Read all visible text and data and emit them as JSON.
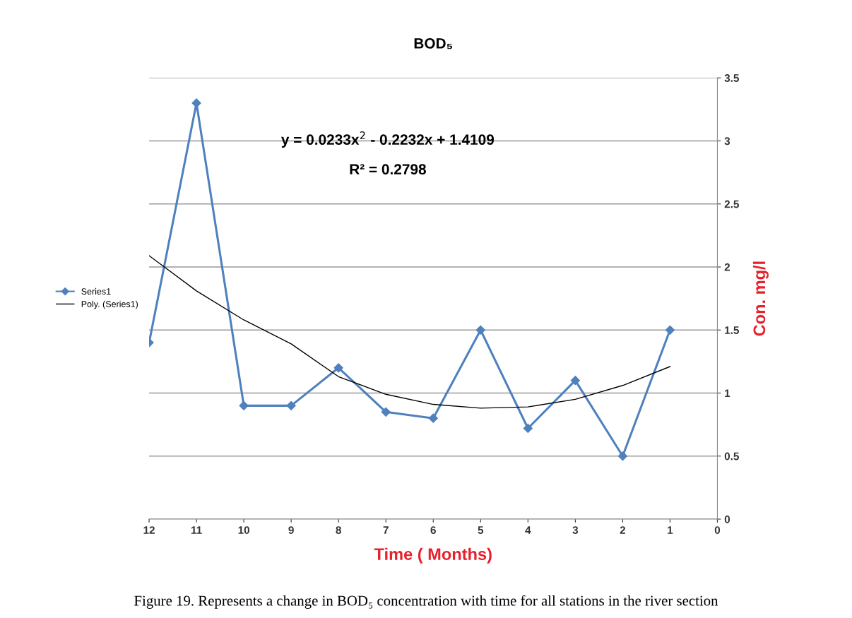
{
  "chart_data": {
    "type": "line",
    "title": "BOD₅",
    "xlabel": "Time ( Months)",
    "ylabel": "Con. mg/l",
    "x": [
      12,
      11,
      10,
      9,
      8,
      7,
      6,
      5,
      4,
      3,
      2,
      1
    ],
    "series": [
      {
        "name": "Series1",
        "color": "#4f81bd",
        "values": [
          1.4,
          3.3,
          0.9,
          0.9,
          1.2,
          0.85,
          0.8,
          1.5,
          0.72,
          1.1,
          0.5,
          1.5
        ],
        "marker": "diamond"
      },
      {
        "name": "Poly. (Series1)",
        "color": "#000000",
        "type": "line",
        "x": [
          12,
          11,
          10,
          9,
          8,
          7,
          6,
          5,
          4,
          3,
          2,
          1
        ],
        "values": [
          2.09,
          1.81,
          1.58,
          1.39,
          1.13,
          0.99,
          0.91,
          0.88,
          0.89,
          0.95,
          1.06,
          1.21
        ],
        "marker": "none"
      }
    ],
    "xlim": [
      12,
      0
    ],
    "xticks": [
      12,
      11,
      10,
      9,
      8,
      7,
      6,
      5,
      4,
      3,
      2,
      1,
      0
    ],
    "ylim": [
      0,
      3.5
    ],
    "yticks": [
      0,
      0.5,
      1,
      1.5,
      2,
      2.5,
      3,
      3.5
    ],
    "grid": "y",
    "legend": "left",
    "annotations": [
      "y = 0.0233x$^{2}$ - 0.2232x + 1.4109",
      "R² = 0.2798",
      "Figure 19. Represents a change in BOD₅ concentration with time for all stations in the river section"
    ]
  }
}
